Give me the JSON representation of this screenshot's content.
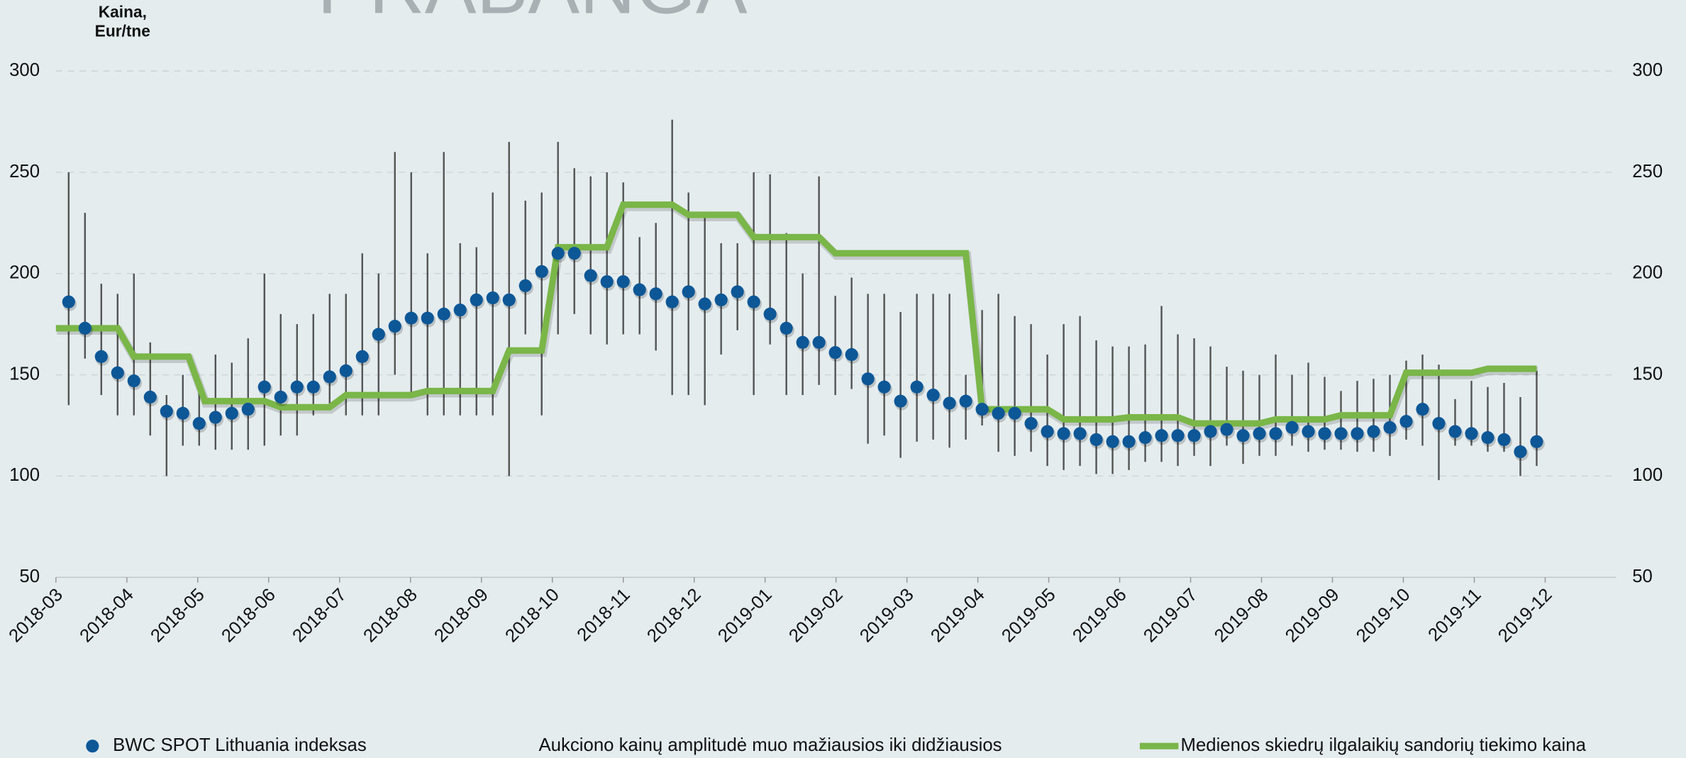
{
  "chart_data": {
    "type": "scatter",
    "title": "PRABANGA",
    "y_label": [
      "Kaina,",
      "Eur/tne"
    ],
    "xlim": [
      0,
      22
    ],
    "xticks": [
      {
        "value": 0,
        "label": "2018-03"
      },
      {
        "value": 1,
        "label": "2018-04"
      },
      {
        "value": 2,
        "label": "2018-05"
      },
      {
        "value": 3,
        "label": "2018-06"
      },
      {
        "value": 4,
        "label": "2018-07"
      },
      {
        "value": 5,
        "label": "2018-08"
      },
      {
        "value": 6,
        "label": "2018-09"
      },
      {
        "value": 7,
        "label": "2018-10"
      },
      {
        "value": 8,
        "label": "2018-11"
      },
      {
        "value": 9,
        "label": "2018-12"
      },
      {
        "value": 10,
        "label": "2019-01"
      },
      {
        "value": 11,
        "label": "2019-02"
      },
      {
        "value": 12,
        "label": "2019-03"
      },
      {
        "value": 13,
        "label": "2019-04"
      },
      {
        "value": 14,
        "label": "2019-05"
      },
      {
        "value": 15,
        "label": "2019-06"
      },
      {
        "value": 16,
        "label": "2019-07"
      },
      {
        "value": 17,
        "label": "2019-08"
      },
      {
        "value": 18,
        "label": "2019-09"
      },
      {
        "value": 19,
        "label": "2019-10"
      },
      {
        "value": 20,
        "label": "2019-11"
      },
      {
        "value": 21,
        "label": "2019-12"
      }
    ],
    "ylim": [
      50,
      300
    ],
    "yticks": [
      50,
      100,
      150,
      200,
      250,
      300
    ],
    "y2lim": [
      50,
      300
    ],
    "y2ticks": [
      50,
      100,
      150,
      200,
      250,
      300
    ],
    "grid": true,
    "x": [
      0.18,
      0.41,
      0.64,
      0.87,
      1.1,
      1.33,
      1.56,
      1.79,
      2.02,
      2.25,
      2.48,
      2.71,
      2.94,
      3.17,
      3.4,
      3.63,
      3.86,
      4.09,
      4.32,
      4.55,
      4.78,
      5.01,
      5.24,
      5.47,
      5.7,
      5.93,
      6.16,
      6.39,
      6.62,
      6.85,
      7.08,
      7.31,
      7.54,
      7.77,
      8.0,
      8.23,
      8.46,
      8.69,
      8.92,
      9.15,
      9.38,
      9.61,
      9.84,
      10.07,
      10.3,
      10.53,
      10.76,
      10.99,
      11.22,
      11.45,
      11.68,
      11.91,
      12.14,
      12.37,
      12.6,
      12.83,
      13.06,
      13.29,
      13.52,
      13.75,
      13.98,
      14.21,
      14.44,
      14.67,
      14.9,
      15.13,
      15.36,
      15.59,
      15.82,
      16.05,
      16.28,
      16.51,
      16.74,
      16.97,
      17.2,
      17.43,
      17.66,
      17.89,
      18.12,
      18.35,
      18.58,
      18.81,
      19.04,
      19.27,
      19.5,
      19.73,
      19.96,
      20.19,
      20.42,
      20.65,
      20.88
    ],
    "series": [
      {
        "name": "BWC SPOT Lithuania indeksas",
        "color": "#0d5797",
        "values": [
          186,
          173,
          159,
          151,
          147,
          139,
          132,
          131,
          126,
          129,
          131,
          133,
          144,
          139,
          144,
          144,
          149,
          152,
          159,
          170,
          174,
          178,
          178,
          180,
          182,
          187,
          188,
          187,
          194,
          201,
          210,
          210,
          199,
          196,
          196,
          192,
          190,
          186,
          191,
          185,
          187,
          191,
          186,
          180,
          173,
          166,
          166,
          161,
          160,
          148,
          144,
          137,
          144,
          140,
          136,
          137,
          133,
          131,
          131,
          126,
          122,
          121,
          121,
          118,
          117,
          117,
          119,
          120,
          120,
          120,
          122,
          123,
          120,
          121,
          121,
          124,
          122,
          121,
          121,
          121,
          122,
          124,
          127,
          133,
          126,
          122,
          121,
          119,
          118,
          112,
          117
        ]
      },
      {
        "name": "Aukciono kainų amplitudė muo mažiausios iki didžiausios",
        "color": "#555555",
        "low": [
          135,
          158,
          140,
          130,
          130,
          120,
          100,
          115,
          115,
          113,
          113,
          113,
          115,
          120,
          120,
          130,
          133,
          130,
          130,
          130,
          150,
          140,
          130,
          130,
          130,
          130,
          130,
          100,
          170,
          130,
          170,
          180,
          170,
          165,
          170,
          170,
          162,
          140,
          140,
          135,
          160,
          172,
          140,
          165,
          140,
          140,
          145,
          140,
          143,
          116,
          120,
          109,
          117,
          118,
          114,
          118,
          125,
          112,
          110,
          112,
          105,
          103,
          105,
          101,
          101,
          103,
          107,
          107,
          105,
          110,
          105,
          115,
          106,
          110,
          110,
          115,
          112,
          113,
          113,
          112,
          112,
          110,
          118,
          115,
          98,
          115,
          115,
          112,
          112,
          100,
          105
        ],
        "high": [
          250,
          230,
          195,
          190,
          200,
          166,
          140,
          150,
          145,
          160,
          156,
          168,
          200,
          180,
          175,
          180,
          190,
          190,
          210,
          200,
          260,
          250,
          210,
          260,
          215,
          213,
          240,
          265,
          236,
          240,
          265,
          252,
          248,
          250,
          245,
          218,
          225,
          276,
          240,
          230,
          215,
          215,
          250,
          249,
          220,
          200,
          248,
          189,
          198,
          190,
          190,
          181,
          190,
          190,
          190,
          150,
          182,
          190,
          179,
          175,
          160,
          175,
          179,
          167,
          164,
          164,
          165,
          184,
          170,
          168,
          164,
          154,
          152,
          150,
          160,
          150,
          156,
          149,
          142,
          147,
          148,
          150,
          157,
          160,
          155,
          138,
          147,
          144,
          146,
          139,
          152
        ]
      },
      {
        "name": "Medienos skiedrų ilgalaikių sandorių tiekimo kaina",
        "type": "line",
        "color": "#7ab648",
        "x": [
          0,
          0.87,
          1.1,
          1.87,
          2.1,
          2.94,
          3.17,
          3.86,
          4.09,
          5.01,
          5.24,
          6.16,
          6.39,
          6.85,
          7.08,
          7.77,
          8.0,
          8.69,
          8.92,
          9.61,
          9.84,
          10.76,
          10.99,
          12.83,
          13.06,
          13.98,
          14.21,
          14.9,
          15.13,
          15.82,
          16.05,
          16.97,
          17.2,
          17.89,
          18.12,
          18.81,
          19.04,
          19.96,
          20.19,
          20.88
        ],
        "values": [
          173,
          173,
          159,
          159,
          137,
          137,
          134,
          134,
          140,
          140,
          142,
          142,
          162,
          162,
          213,
          213,
          234,
          234,
          229,
          229,
          218,
          218,
          210,
          210,
          133,
          133,
          128,
          128,
          129,
          129,
          126,
          126,
          128,
          128,
          130,
          130,
          151,
          151,
          153,
          153
        ]
      }
    ]
  }
}
